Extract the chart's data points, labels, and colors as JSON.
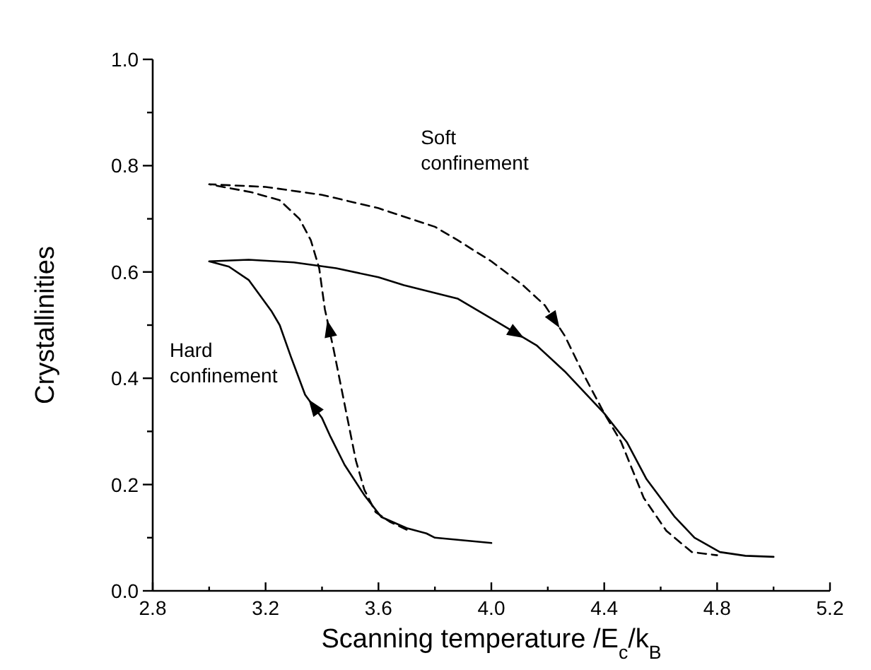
{
  "chart_data": {
    "type": "line",
    "xlabel": "Scanning temperature /E$_{c}$/k$_{B}$",
    "ylabel": "Crystallinities",
    "xlim": [
      2.8,
      5.2
    ],
    "ylim": [
      0,
      1.0
    ],
    "xticks": [
      2.8,
      {
        "value": 3.0,
        "label": null
      },
      3.2,
      {
        "value": 3.4,
        "label": null
      },
      3.6,
      {
        "value": 3.8,
        "label": null
      },
      {
        "value": 4.0,
        "label": "4.0"
      },
      {
        "value": 4.2,
        "label": null
      },
      4.4,
      {
        "value": 4.6,
        "label": null
      },
      4.8,
      {
        "value": 5.0,
        "label": null
      },
      5.2
    ],
    "yticks": [
      {
        "value": 0,
        "label": "0.0"
      },
      {
        "value": 0.1,
        "label": null
      },
      0.2,
      {
        "value": 0.3,
        "label": null
      },
      0.4,
      {
        "value": 0.5,
        "label": null
      },
      0.6,
      {
        "value": 0.7,
        "label": null
      },
      0.8,
      {
        "value": 0.9,
        "label": null
      },
      {
        "value": 1.0,
        "label": "1.0"
      }
    ],
    "grid": false,
    "marker": "none",
    "annotations": [
      "Soft\nconfinement",
      "Hard\nconfinement"
    ],
    "series": [
      {
        "color": "#000000",
        "line_style": "solid",
        "x": [
          4.0,
          3.9,
          3.8,
          3.77,
          3.7,
          3.61,
          3.55,
          3.48,
          3.43,
          3.4,
          3.34,
          3.29,
          3.25,
          3.22,
          3.14,
          3.07,
          3.0,
          3.14,
          3.3,
          3.45,
          3.6,
          3.69,
          3.88,
          4.02,
          4.16,
          4.26,
          4.4,
          4.48,
          4.55,
          4.65,
          4.72,
          4.81,
          4.9,
          5.0
        ],
        "values": [
          0.09,
          0.095,
          0.1,
          0.108,
          0.118,
          0.139,
          0.18,
          0.237,
          0.29,
          0.325,
          0.369,
          0.44,
          0.5,
          0.527,
          0.585,
          0.61,
          0.62,
          0.623,
          0.618,
          0.607,
          0.59,
          0.575,
          0.55,
          0.506,
          0.462,
          0.413,
          0.334,
          0.28,
          0.21,
          0.139,
          0.1,
          0.073,
          0.066,
          0.064
        ]
      },
      {
        "color": "#000000",
        "line_style": "dashed",
        "x": [
          3.7,
          3.64,
          3.59,
          3.55,
          3.52,
          3.48,
          3.44,
          3.41,
          3.39,
          3.36,
          3.32,
          3.25,
          3.15,
          3.0,
          3.2,
          3.4,
          3.6,
          3.8,
          3.88,
          4.0,
          4.11,
          4.19,
          4.26,
          4.33,
          4.4,
          4.46,
          4.54,
          4.62,
          4.71,
          4.8
        ],
        "values": [
          0.115,
          0.13,
          0.148,
          0.19,
          0.245,
          0.351,
          0.457,
          0.53,
          0.607,
          0.66,
          0.7,
          0.735,
          0.75,
          0.765,
          0.76,
          0.745,
          0.72,
          0.685,
          0.66,
          0.62,
          0.576,
          0.537,
          0.48,
          0.404,
          0.334,
          0.28,
          0.175,
          0.113,
          0.073,
          0.067
        ]
      }
    ]
  }
}
